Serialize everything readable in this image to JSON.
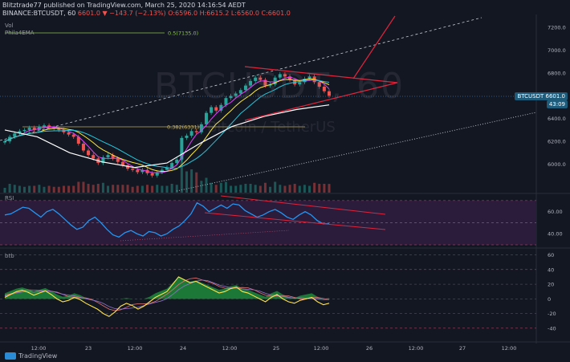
{
  "header": {
    "line1": "Blitztrade77 published on TradingView.com, March 25, 2020 14:16:54 AEDT",
    "symbol": "BINANCE:BTCUSDT, 60",
    "ohlc": "6601.0 ▼ −143.7 (−2.13%) O:6596.0 H:6615.2 L:6560.0 C:6601.0"
  },
  "indicators": {
    "vol": "Vol",
    "phila": "Phila4EMA",
    "fib_top": "0.5(7135.0)",
    "fib_mid": "0.382(6331)",
    "rsi": "RSI",
    "btb": "btb"
  },
  "watermark": {
    "symbol": "BTCUSDT, 60",
    "name": "Bitcoin / TetherUS"
  },
  "axis_tags": {
    "price": "BTCUSDT 6601.0",
    "countdown": "43:09"
  },
  "footer": {
    "brand": "TradingView"
  },
  "colors": {
    "up": "#26a69a",
    "down": "#ef5350",
    "trendline": "#e0243b",
    "rsi": "#2196f3",
    "rsi_band": "#2a1c3a",
    "wave": "#ffe14d",
    "green_area": "#1e8a3a"
  },
  "chart_data": [
    {
      "type": "candlestick",
      "title": "BINANCE:BTCUSDT, 60",
      "ylim": [
        5750,
        7300
      ],
      "y_ticks": [
        6000.0,
        6200.0,
        6400.0,
        6600.0,
        6800.0,
        7000.0,
        7200.0
      ],
      "x_ticks": [
        "12:00",
        "23",
        "12:00",
        "24",
        "12:00",
        "25",
        "12:00",
        "26",
        "12:00",
        "27",
        "12:00"
      ],
      "last_price": 6601.0,
      "close_series": [
        6200,
        6240,
        6270,
        6290,
        6300,
        6320,
        6300,
        6330,
        6340,
        6320,
        6310,
        6300,
        6280,
        6260,
        6240,
        6180,
        6120,
        6080,
        6050,
        6010,
        6060,
        6080,
        6050,
        6020,
        5990,
        5960,
        5950,
        5930,
        5950,
        5920,
        5900,
        5930,
        5950,
        5970,
        6010,
        6040,
        6230,
        6250,
        6290,
        6280,
        6350,
        6450,
        6500,
        6470,
        6520,
        6580,
        6600,
        6620,
        6650,
        6690,
        6730,
        6760,
        6740,
        6690,
        6700,
        6760,
        6790,
        6770,
        6740,
        6700,
        6720,
        6750,
        6770,
        6720,
        6680,
        6640,
        6601
      ],
      "ema_white": [
        6300,
        6240,
        6100,
        6020,
        5970,
        6010,
        6180,
        6330,
        6420,
        6480,
        6520
      ],
      "fib_levels": [
        {
          "label": "0.5(7135.0)",
          "price": 7135
        },
        {
          "label": "0.382(6331)",
          "price": 6331
        }
      ]
    },
    {
      "type": "line",
      "title": "RSI",
      "ylim": [
        30,
        75
      ],
      "y_ticks": [
        40.0,
        60.0
      ],
      "rsi_values": [
        57,
        58,
        61,
        64,
        63,
        59,
        55,
        60,
        62,
        58,
        53,
        48,
        44,
        46,
        52,
        55,
        50,
        44,
        39,
        37,
        41,
        43,
        40,
        38,
        42,
        41,
        38,
        40,
        44,
        47,
        52,
        58,
        68,
        65,
        60,
        63,
        66,
        63,
        67,
        66,
        61,
        58,
        55,
        57,
        60,
        62,
        59,
        55,
        53,
        57,
        60,
        57,
        52,
        49,
        49
      ]
    },
    {
      "type": "line",
      "title": "btb",
      "ylim": [
        -50,
        65
      ],
      "y_ticks": [
        60,
        40,
        20,
        0,
        -20,
        -40
      ],
      "wave_values": [
        2,
        6,
        10,
        12,
        9,
        5,
        8,
        11,
        6,
        0,
        -4,
        -2,
        2,
        -1,
        -6,
        -10,
        -14,
        -20,
        -24,
        -18,
        -10,
        -6,
        -9,
        -14,
        -10,
        -4,
        2,
        6,
        10,
        20,
        30,
        26,
        22,
        24,
        20,
        16,
        12,
        8,
        10,
        14,
        16,
        10,
        8,
        4,
        0,
        -4,
        2,
        6,
        0,
        -4,
        -6,
        -2,
        0,
        2,
        -4,
        -8,
        -6
      ]
    }
  ]
}
